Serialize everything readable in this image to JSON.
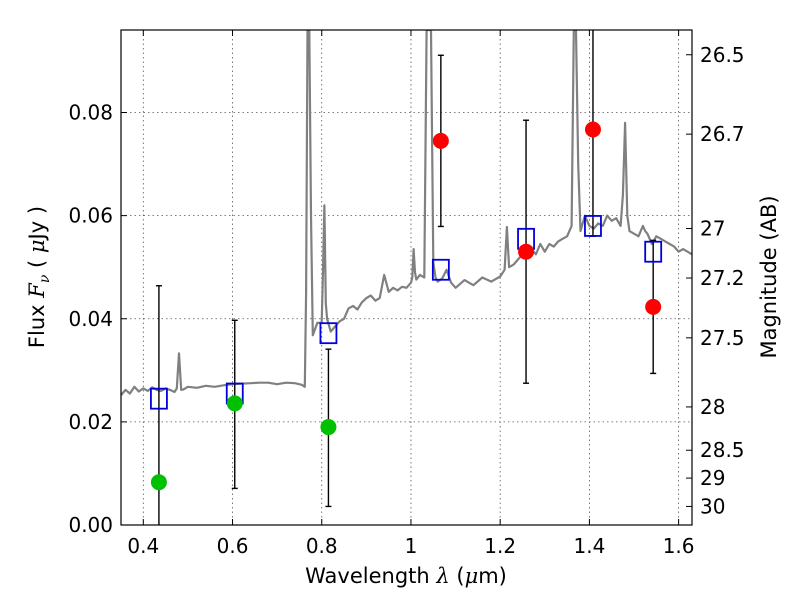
{
  "chart_data": {
    "type": "scatter",
    "xlabel": "Wavelength  λ (μm)",
    "ylabel": "Flux  F_ν  ( μJy )",
    "y2label": "Magnitude (AB)",
    "xlim": [
      0.35,
      1.63
    ],
    "ylim": [
      0.0,
      0.096
    ],
    "grid": true,
    "x_ticks": [
      0.4,
      0.6,
      0.8,
      1.0,
      1.2,
      1.4,
      1.6
    ],
    "x_tick_labels": [
      "0.4",
      "0.6",
      "0.8",
      "1",
      "1.2",
      "1.4",
      "1.6"
    ],
    "y_ticks": [
      0.0,
      0.02,
      0.04,
      0.06,
      0.08
    ],
    "y_tick_labels": [
      "0.00",
      "0.02",
      "0.04",
      "0.06",
      "0.08"
    ],
    "y2_ticks": [
      {
        "label": "26.5",
        "flux": 0.0912
      },
      {
        "label": "26.7",
        "flux": 0.0758
      },
      {
        "label": "27",
        "flux": 0.0575
      },
      {
        "label": "27.2",
        "flux": 0.0479
      },
      {
        "label": "27.5",
        "flux": 0.0363
      },
      {
        "label": "28",
        "flux": 0.0229
      },
      {
        "label": "28.5",
        "flux": 0.0145
      },
      {
        "label": "29",
        "flux": 0.0091
      },
      {
        "label": "30",
        "flux": 0.0036
      }
    ],
    "series": [
      {
        "marker": "circle",
        "color": "#00c000",
        "x": [
          0.435,
          0.605,
          0.815
        ],
        "y": [
          0.0083,
          0.0236,
          0.019
        ],
        "err_low": [
          0.0083,
          0.0165,
          0.0154
        ],
        "err_high": [
          0.0381,
          0.0161,
          0.0151
        ]
      },
      {
        "marker": "circle",
        "color": "#ff0000",
        "x": [
          1.067,
          1.258,
          1.408,
          1.543
        ],
        "y": [
          0.0745,
          0.053,
          0.0767,
          0.0423
        ],
        "err_low": [
          0.0166,
          0.0255,
          0.0207,
          0.0129
        ],
        "err_high": [
          0.0166,
          0.0255,
          0.0193,
          0.0129
        ]
      },
      {
        "marker": "square",
        "color": "#0000dd",
        "x": [
          0.435,
          0.605,
          0.815,
          1.067,
          1.258,
          1.408,
          1.543
        ],
        "y": [
          0.0245,
          0.0255,
          0.0372,
          0.0495,
          0.0555,
          0.058,
          0.053
        ]
      },
      {
        "marker": "line",
        "color": "#808080",
        "x": [
          0.35,
          0.36,
          0.37,
          0.38,
          0.39,
          0.4,
          0.41,
          0.42,
          0.43,
          0.44,
          0.45,
          0.46,
          0.47,
          0.475,
          0.48,
          0.485,
          0.49,
          0.5,
          0.52,
          0.54,
          0.56,
          0.58,
          0.6,
          0.62,
          0.64,
          0.66,
          0.68,
          0.7,
          0.72,
          0.74,
          0.755,
          0.762,
          0.765,
          0.768,
          0.772,
          0.776,
          0.78,
          0.79,
          0.8,
          0.803,
          0.806,
          0.809,
          0.812,
          0.82,
          0.83,
          0.84,
          0.85,
          0.86,
          0.87,
          0.88,
          0.89,
          0.9,
          0.91,
          0.92,
          0.93,
          0.94,
          0.95,
          0.96,
          0.97,
          0.98,
          0.99,
          1.0,
          1.003,
          1.006,
          1.009,
          1.012,
          1.02,
          1.03,
          1.035,
          1.038,
          1.041,
          1.045,
          1.05,
          1.055,
          1.06,
          1.07,
          1.08,
          1.09,
          1.1,
          1.12,
          1.14,
          1.16,
          1.18,
          1.2,
          1.21,
          1.215,
          1.22,
          1.23,
          1.24,
          1.25,
          1.26,
          1.27,
          1.28,
          1.29,
          1.3,
          1.31,
          1.32,
          1.33,
          1.34,
          1.35,
          1.36,
          1.365,
          1.37,
          1.375,
          1.38,
          1.39,
          1.4,
          1.41,
          1.42,
          1.43,
          1.44,
          1.45,
          1.46,
          1.47,
          1.475,
          1.48,
          1.485,
          1.49,
          1.5,
          1.51,
          1.52,
          1.525,
          1.53,
          1.54,
          1.55,
          1.56,
          1.57,
          1.58,
          1.59,
          1.6,
          1.61,
          1.62,
          1.63
        ],
        "y": [
          0.0252,
          0.0262,
          0.0255,
          0.0268,
          0.0259,
          0.0265,
          0.026,
          0.0267,
          0.0262,
          0.026,
          0.0265,
          0.0262,
          0.0258,
          0.0265,
          0.0333,
          0.0262,
          0.0263,
          0.0268,
          0.0266,
          0.027,
          0.0268,
          0.0271,
          0.0273,
          0.0274,
          0.0275,
          0.0276,
          0.0276,
          0.0273,
          0.0276,
          0.0275,
          0.0272,
          0.0268,
          0.045,
          0.096,
          0.096,
          0.06,
          0.0368,
          0.0392,
          0.0392,
          0.05,
          0.062,
          0.043,
          0.04,
          0.0375,
          0.0385,
          0.0395,
          0.04,
          0.042,
          0.0425,
          0.0418,
          0.0432,
          0.044,
          0.0445,
          0.0435,
          0.044,
          0.0485,
          0.0452,
          0.046,
          0.0455,
          0.0462,
          0.046,
          0.047,
          0.048,
          0.0535,
          0.049,
          0.0476,
          0.0485,
          0.048,
          0.096,
          0.096,
          0.096,
          0.096,
          0.051,
          0.048,
          0.0472,
          0.0478,
          0.0495,
          0.047,
          0.046,
          0.0475,
          0.0465,
          0.048,
          0.0472,
          0.0482,
          0.0495,
          0.0578,
          0.05,
          0.0505,
          0.0515,
          0.0525,
          0.053,
          0.0535,
          0.0525,
          0.0545,
          0.053,
          0.0545,
          0.054,
          0.055,
          0.0555,
          0.056,
          0.058,
          0.096,
          0.096,
          0.07,
          0.057,
          0.06,
          0.058,
          0.0575,
          0.0585,
          0.058,
          0.06,
          0.059,
          0.0595,
          0.058,
          0.064,
          0.078,
          0.06,
          0.057,
          0.0565,
          0.056,
          0.058,
          0.057,
          0.0565,
          0.0545,
          0.056,
          0.0555,
          0.055,
          0.0545,
          0.054,
          0.053,
          0.0535,
          0.053,
          0.0525
        ]
      }
    ]
  }
}
